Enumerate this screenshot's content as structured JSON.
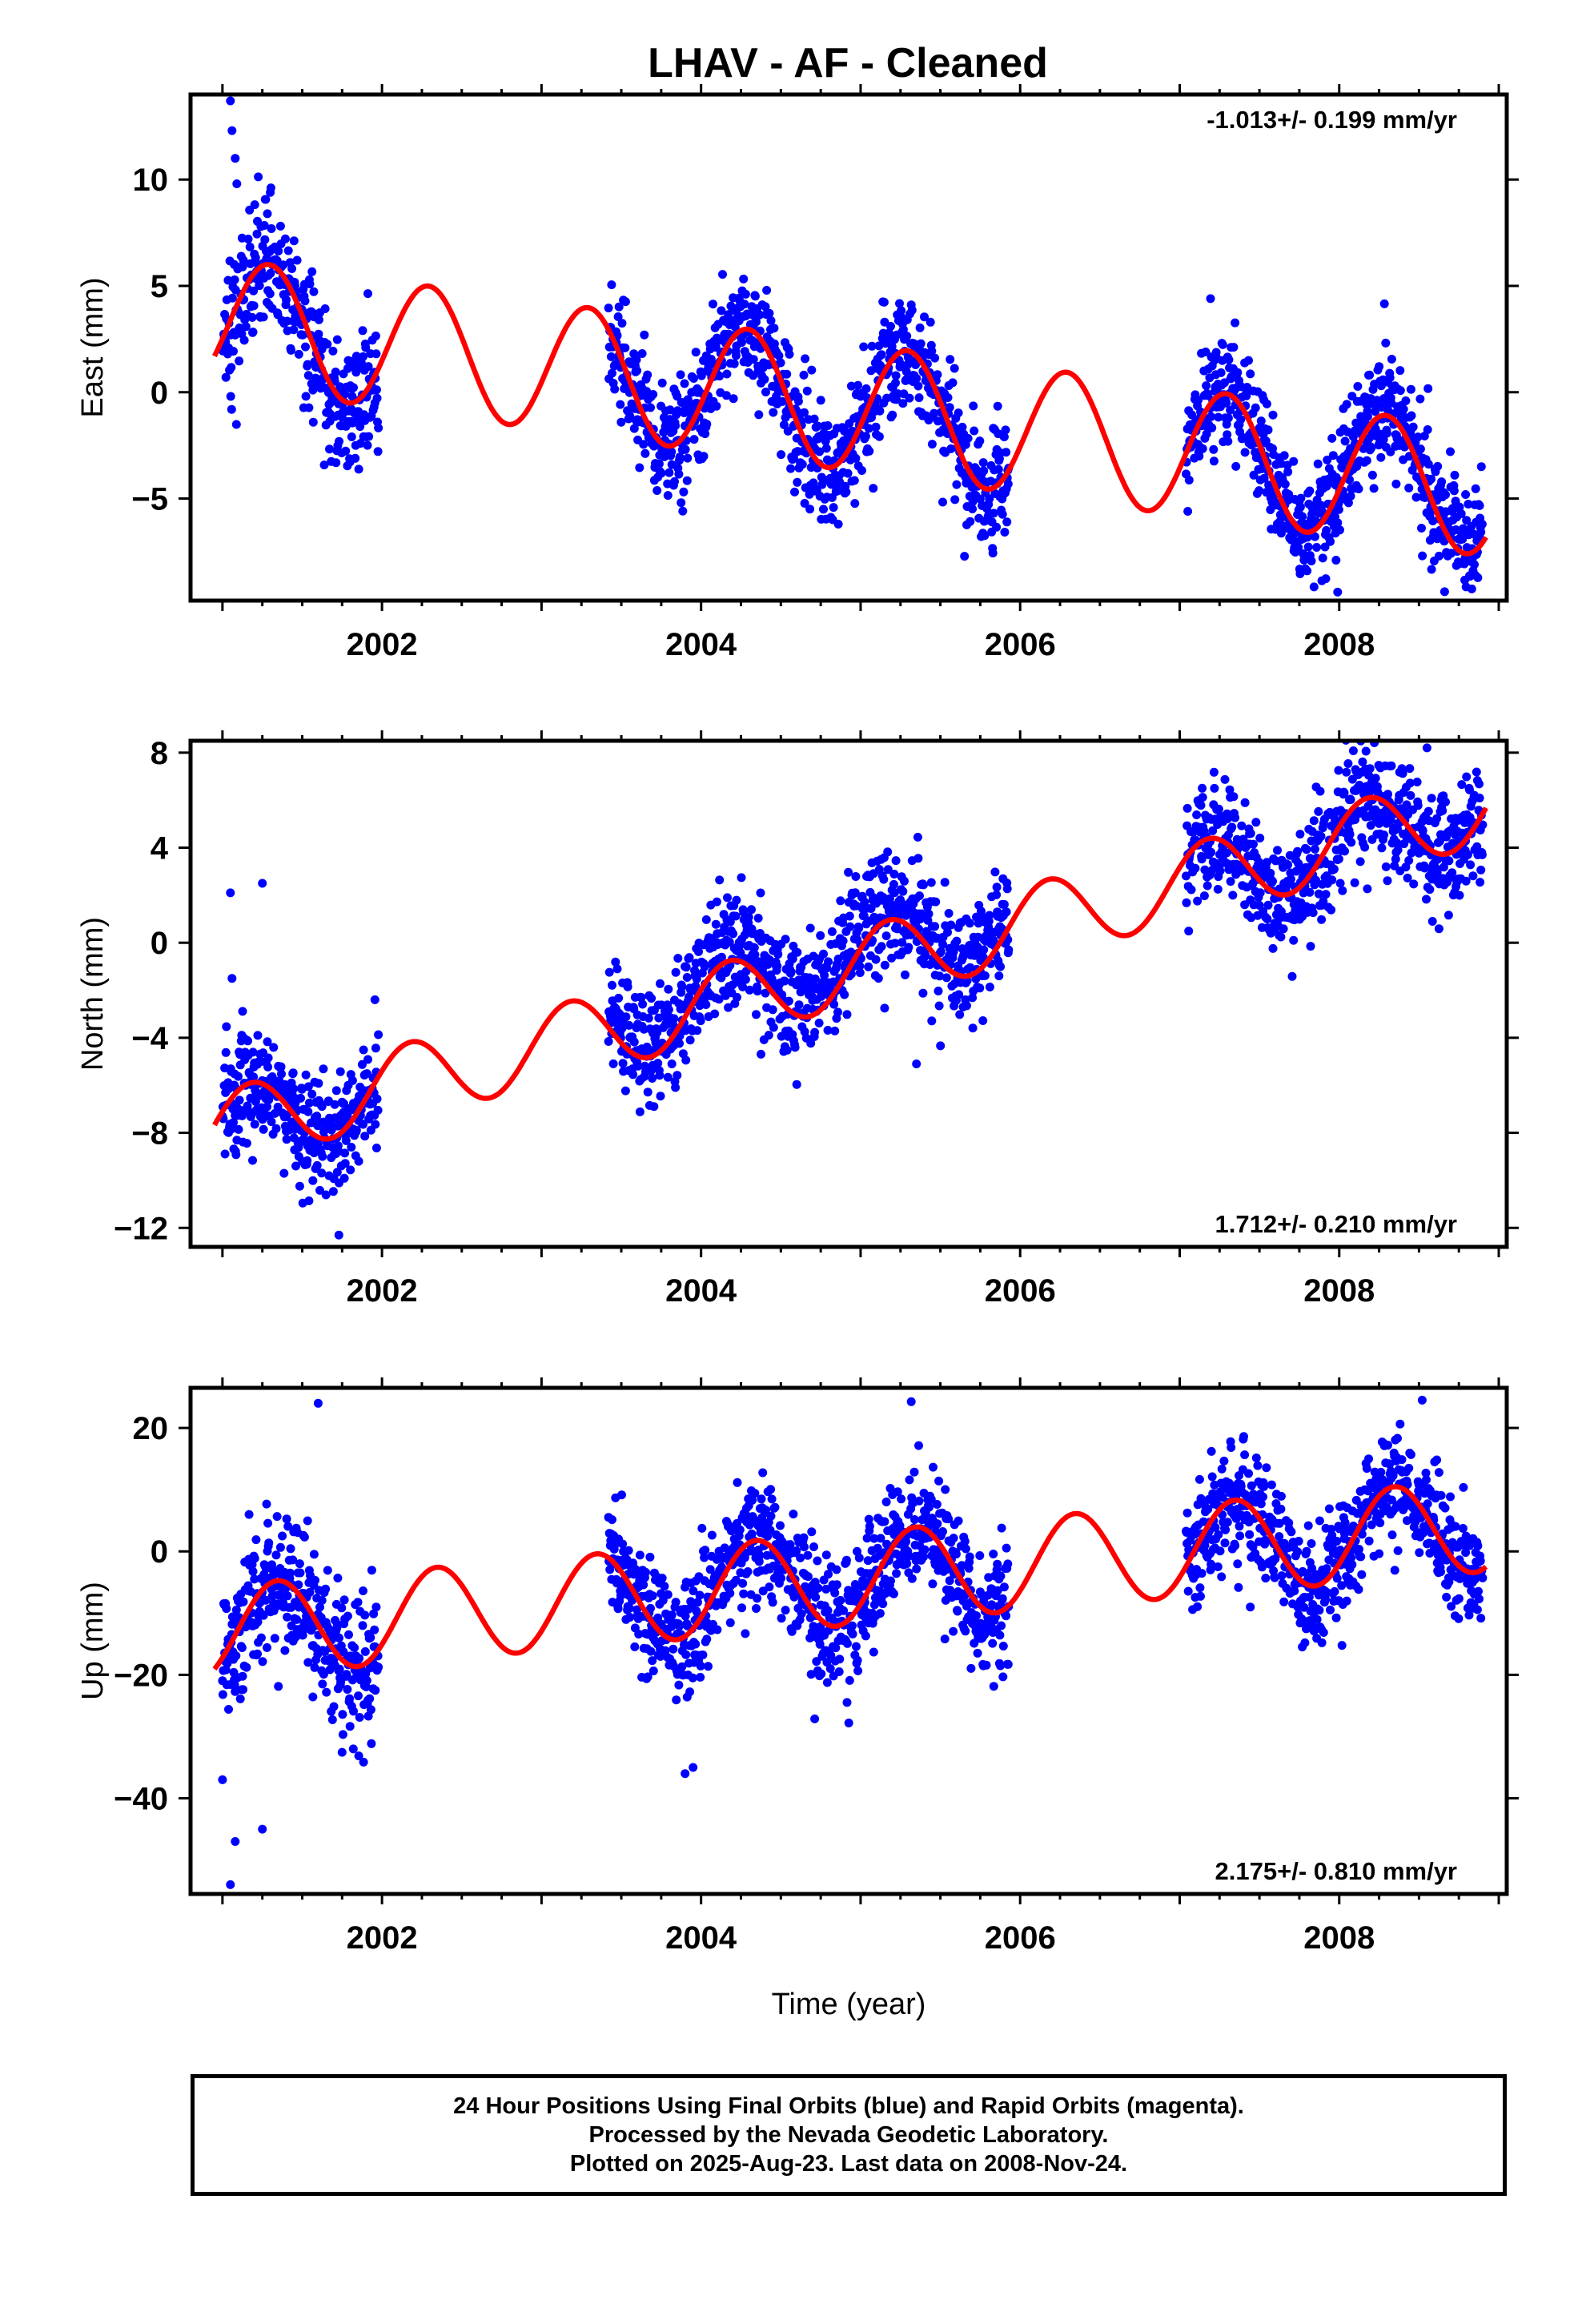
{
  "title": "LHAV  - AF - Cleaned",
  "caption": {
    "lines": [
      "24 Hour Positions Using Final Orbits (blue) and Rapid Orbits (magenta).",
      "Processed by the Nevada Geodetic Laboratory.",
      "Plotted on 2025-Aug-23. Last data on 2008-Nov-24."
    ]
  },
  "colors": {
    "data_points": "#0000ff",
    "model_curve": "#ff0000",
    "axes": "#000000"
  },
  "chart_data": [
    {
      "type": "scatter",
      "panel": "east",
      "ylabel": "East (mm)",
      "xlabel": "",
      "rate_label": "-1.013+/- 0.199 mm/yr",
      "rate_position": "top-right",
      "xlim": [
        2000.8,
        2009.05
      ],
      "ylim": [
        -9.8,
        14
      ],
      "xticks": [
        2002,
        2004,
        2006,
        2008
      ],
      "xtick_labels": [
        "2002",
        "2004",
        "2006",
        "2008"
      ],
      "yticks": [
        -5,
        0,
        5,
        10
      ],
      "ytick_labels": [
        "−5",
        "0",
        "5",
        "10"
      ],
      "grid": false,
      "model": {
        "offset": 3.3,
        "trend": -1.013,
        "amplitude": 3.0,
        "phase": -0.27,
        "t0": 2001.0
      },
      "series": [
        {
          "kind": "points",
          "segments": [
            {
              "start": 2001.0,
              "end": 2001.98,
              "mean_offset": -0.3,
              "scatter": 1.6
            },
            {
              "start": 2003.42,
              "end": 2005.93,
              "mean_offset": 0.0,
              "scatter": 1.4
            },
            {
              "start": 2007.04,
              "end": 2008.9,
              "mean_offset": 0.2,
              "scatter": 1.4
            }
          ],
          "extra_points": [
            [
              2001.05,
              13.7
            ],
            [
              2001.06,
              12.3
            ],
            [
              2001.08,
              11.0
            ],
            [
              2001.09,
              9.8
            ],
            [
              2001.3,
              9.4
            ],
            [
              2001.81,
              -2.1
            ],
            [
              2007.98,
              -7.9
            ],
            [
              2007.99,
              -9.4
            ]
          ]
        }
      ]
    },
    {
      "type": "scatter",
      "panel": "north",
      "ylabel": "North (mm)",
      "xlabel": "",
      "rate_label": "1.712+/- 0.210 mm/yr",
      "rate_position": "bottom-right",
      "xlim": [
        2000.8,
        2009.05
      ],
      "ylim": [
        -12.8,
        8.5
      ],
      "xticks": [
        2002,
        2004,
        2006,
        2008
      ],
      "xtick_labels": [
        "2002",
        "2004",
        "2006",
        "2008"
      ],
      "yticks": [
        -12,
        -8,
        -4,
        0,
        4,
        8
      ],
      "ytick_labels": [
        "−12",
        "−8",
        "−4",
        "0",
        "4",
        "8"
      ],
      "grid": false,
      "model": {
        "offset": -7.8,
        "trend": 1.712,
        "amplitude": 1.6,
        "phase": 0.45,
        "t0": 2001.0
      },
      "series": [
        {
          "kind": "points",
          "segments": [
            {
              "start": 2001.0,
              "end": 2001.98,
              "mean_offset": 0.0,
              "scatter": 1.3
            },
            {
              "start": 2003.42,
              "end": 2005.93,
              "mean_offset": 0.6,
              "scatter": 1.2
            },
            {
              "start": 2007.04,
              "end": 2008.9,
              "mean_offset": 0.0,
              "scatter": 1.2
            }
          ],
          "extra_points": [
            [
              2001.05,
              2.1
            ],
            [
              2001.25,
              2.5
            ],
            [
              2001.06,
              -1.5
            ],
            [
              2001.73,
              -12.3
            ],
            [
              2005.35,
              -5.1
            ],
            [
              2008.55,
              8.2
            ]
          ]
        }
      ]
    },
    {
      "type": "scatter",
      "panel": "up",
      "ylabel": "Up (mm)",
      "xlabel": "Time (year)",
      "rate_label": "2.175+/- 0.810 mm/yr",
      "rate_position": "bottom-right",
      "xlim": [
        2000.8,
        2009.05
      ],
      "ylim": [
        -55.5,
        26.5
      ],
      "xticks": [
        2002,
        2004,
        2006,
        2008
      ],
      "xtick_labels": [
        "2002",
        "2004",
        "2006",
        "2008"
      ],
      "yticks": [
        -40,
        -20,
        0,
        20
      ],
      "ytick_labels": [
        "−40",
        "−20",
        "0",
        "20"
      ],
      "grid": false,
      "model": {
        "offset": -13.0,
        "trend": 2.175,
        "amplitude": 7.5,
        "phase": -0.6,
        "t0": 2001.0
      },
      "series": [
        {
          "kind": "points",
          "segments": [
            {
              "start": 2001.0,
              "end": 2001.98,
              "mean_offset": 0.0,
              "scatter": 6.0
            },
            {
              "start": 2003.42,
              "end": 2005.93,
              "mean_offset": 0.0,
              "scatter": 5.0
            },
            {
              "start": 2007.04,
              "end": 2008.9,
              "mean_offset": 0.0,
              "scatter": 4.5
            }
          ],
          "extra_points": [
            [
              2001.0,
              -37
            ],
            [
              2001.05,
              -54
            ],
            [
              2001.08,
              -47
            ],
            [
              2001.25,
              -45
            ],
            [
              2001.6,
              24
            ],
            [
              2001.82,
              -32
            ],
            [
              2003.9,
              -36
            ],
            [
              2003.95,
              -35
            ],
            [
              2008.52,
              24.5
            ]
          ]
        }
      ]
    }
  ]
}
